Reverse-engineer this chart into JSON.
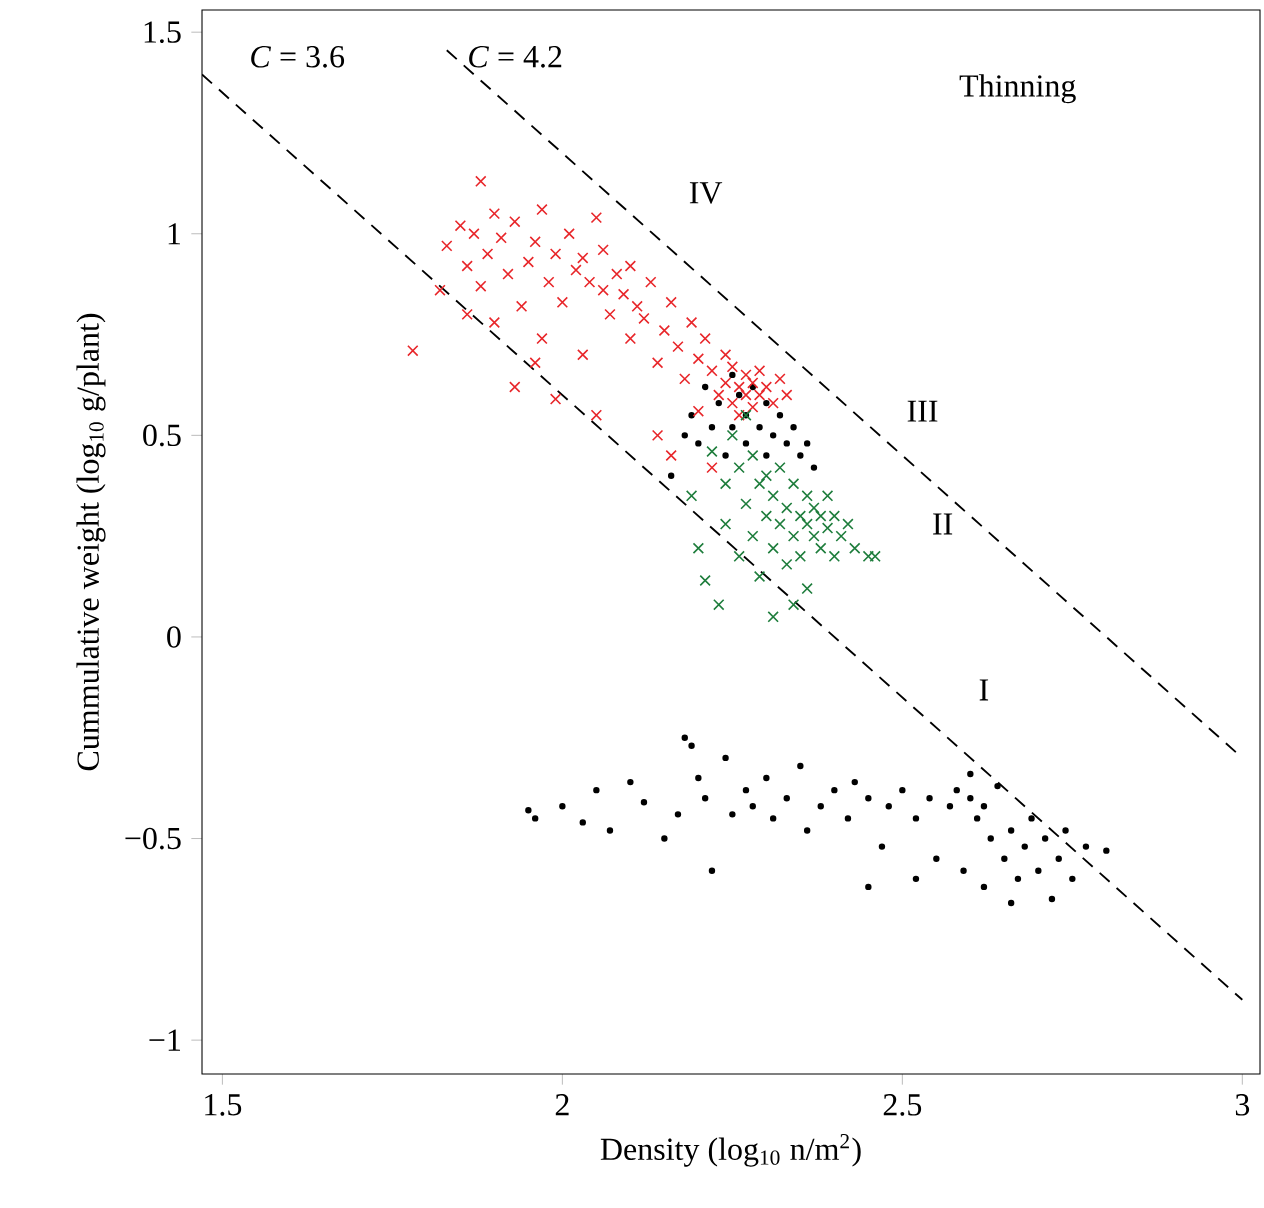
{
  "chart_data": {
    "type": "scatter",
    "xlabel": "Density (log$_{10}$ n/m$^{2}$)",
    "ylabel": "Cummulative weight (log$_{10}$ g/plant)",
    "xlim": [
      1.47,
      3.026
    ],
    "ylim": [
      -1.084,
      1.555
    ],
    "xticks": [
      1.5,
      2,
      2.5,
      3
    ],
    "yticks": [
      {
        "value": -1,
        "label": "−1"
      },
      {
        "value": -0.5,
        "label": "−0.5"
      },
      0,
      0.5,
      1,
      1.5
    ],
    "grid": false,
    "annotations": [
      "*C* = 3.6",
      "*C* = 4.2",
      "Thinning",
      "IV",
      "III",
      "II",
      "I"
    ],
    "series": [
      {
        "type": "line",
        "color": "#000000",
        "line_style": "dashed",
        "marker": "none",
        "x": [
          1.47,
          3.0
        ],
        "values": [
          1.395,
          -0.9
        ]
      },
      {
        "type": "line",
        "color": "#000000",
        "line_style": "dashed",
        "marker": "none",
        "x": [
          1.83,
          3.0
        ],
        "values": [
          1.455,
          -0.3
        ]
      },
      {
        "color": "#000000",
        "marker": "circle",
        "x": [
          2.19,
          2.2,
          2.21,
          2.22,
          2.23,
          2.24,
          2.25,
          2.25,
          2.26,
          2.27,
          2.27,
          2.28,
          2.29,
          2.3,
          2.3,
          2.31,
          2.32,
          2.33,
          2.34,
          2.35,
          2.36,
          2.37,
          2.16,
          2.18,
          1.95,
          1.96,
          2.0,
          2.03,
          2.05,
          2.07,
          2.1,
          2.12,
          2.15,
          2.17,
          2.18,
          2.19,
          2.2,
          2.21,
          2.22,
          2.24,
          2.25,
          2.27,
          2.28,
          2.3,
          2.31,
          2.33,
          2.35,
          2.36,
          2.38,
          2.4,
          2.42,
          2.43,
          2.45,
          2.47,
          2.48,
          2.5,
          2.52,
          2.54,
          2.55,
          2.57,
          2.58,
          2.6,
          2.6,
          2.61,
          2.62,
          2.63,
          2.64,
          2.65,
          2.66,
          2.67,
          2.68,
          2.69,
          2.7,
          2.71,
          2.72,
          2.73,
          2.74,
          2.75,
          2.77,
          2.8,
          2.62,
          2.66,
          2.59,
          2.52,
          2.45
        ],
        "values": [
          0.55,
          0.48,
          0.62,
          0.52,
          0.58,
          0.45,
          0.65,
          0.52,
          0.6,
          0.55,
          0.48,
          0.62,
          0.52,
          0.58,
          0.45,
          0.5,
          0.55,
          0.48,
          0.52,
          0.45,
          0.48,
          0.42,
          0.4,
          0.5,
          -0.43,
          -0.45,
          -0.42,
          -0.46,
          -0.38,
          -0.48,
          -0.36,
          -0.41,
          -0.5,
          -0.44,
          -0.25,
          -0.27,
          -0.35,
          -0.4,
          -0.58,
          -0.3,
          -0.44,
          -0.38,
          -0.42,
          -0.35,
          -0.45,
          -0.4,
          -0.32,
          -0.48,
          -0.42,
          -0.38,
          -0.45,
          -0.36,
          -0.4,
          -0.52,
          -0.42,
          -0.38,
          -0.45,
          -0.4,
          -0.55,
          -0.42,
          -0.38,
          -0.4,
          -0.34,
          -0.45,
          -0.42,
          -0.5,
          -0.37,
          -0.55,
          -0.48,
          -0.6,
          -0.52,
          -0.45,
          -0.58,
          -0.5,
          -0.65,
          -0.55,
          -0.48,
          -0.6,
          -0.52,
          -0.53,
          -0.62,
          -0.66,
          -0.58,
          -0.6,
          -0.62
        ]
      },
      {
        "color": "#e8262a",
        "marker": "cross",
        "x": [
          1.78,
          1.82,
          1.83,
          1.85,
          1.86,
          1.87,
          1.88,
          1.88,
          1.89,
          1.9,
          1.9,
          1.91,
          1.92,
          1.93,
          1.94,
          1.95,
          1.96,
          1.97,
          1.97,
          1.98,
          1.99,
          2.0,
          2.01,
          2.02,
          2.03,
          2.03,
          2.04,
          2.05,
          2.06,
          2.06,
          2.07,
          2.08,
          2.09,
          2.1,
          2.1,
          2.11,
          2.12,
          2.13,
          2.14,
          2.15,
          2.16,
          2.17,
          2.18,
          2.19,
          2.2,
          2.2,
          2.21,
          2.22,
          2.23,
          2.24,
          2.24,
          2.25,
          2.25,
          2.26,
          2.26,
          2.27,
          2.27,
          2.28,
          2.28,
          2.29,
          2.29,
          2.3,
          2.31,
          2.32,
          2.33,
          1.93,
          1.99,
          2.05,
          1.96,
          2.14,
          2.16,
          2.22,
          1.86
        ],
        "values": [
          0.71,
          0.86,
          0.97,
          1.02,
          0.92,
          1.0,
          1.13,
          0.87,
          0.95,
          0.78,
          1.05,
          0.99,
          0.9,
          1.03,
          0.82,
          0.93,
          0.98,
          0.74,
          1.06,
          0.88,
          0.95,
          0.83,
          1.0,
          0.91,
          0.94,
          0.7,
          0.88,
          1.04,
          0.86,
          0.96,
          0.8,
          0.9,
          0.85,
          0.74,
          0.92,
          0.82,
          0.79,
          0.88,
          0.68,
          0.76,
          0.83,
          0.72,
          0.64,
          0.78,
          0.69,
          0.56,
          0.74,
          0.66,
          0.6,
          0.7,
          0.63,
          0.58,
          0.67,
          0.62,
          0.55,
          0.65,
          0.6,
          0.63,
          0.57,
          0.66,
          0.6,
          0.62,
          0.58,
          0.64,
          0.6,
          0.62,
          0.59,
          0.55,
          0.68,
          0.5,
          0.45,
          0.42,
          0.8
        ]
      },
      {
        "color": "#1e7d3c",
        "marker": "cross",
        "x": [
          2.19,
          2.2,
          2.21,
          2.22,
          2.23,
          2.24,
          2.24,
          2.25,
          2.26,
          2.26,
          2.27,
          2.28,
          2.28,
          2.29,
          2.29,
          2.3,
          2.3,
          2.31,
          2.31,
          2.32,
          2.32,
          2.33,
          2.33,
          2.34,
          2.34,
          2.35,
          2.35,
          2.36,
          2.36,
          2.36,
          2.37,
          2.37,
          2.38,
          2.38,
          2.39,
          2.39,
          2.4,
          2.4,
          2.41,
          2.42,
          2.43,
          2.45,
          2.46,
          2.31,
          2.34,
          2.27
        ],
        "values": [
          0.35,
          0.22,
          0.14,
          0.46,
          0.08,
          0.38,
          0.28,
          0.5,
          0.42,
          0.2,
          0.33,
          0.45,
          0.25,
          0.38,
          0.15,
          0.3,
          0.4,
          0.22,
          0.35,
          0.28,
          0.42,
          0.18,
          0.32,
          0.25,
          0.38,
          0.3,
          0.2,
          0.28,
          0.35,
          0.12,
          0.25,
          0.32,
          0.3,
          0.22,
          0.27,
          0.35,
          0.2,
          0.3,
          0.25,
          0.28,
          0.22,
          0.2,
          0.2,
          0.05,
          0.08,
          0.55
        ]
      }
    ]
  }
}
